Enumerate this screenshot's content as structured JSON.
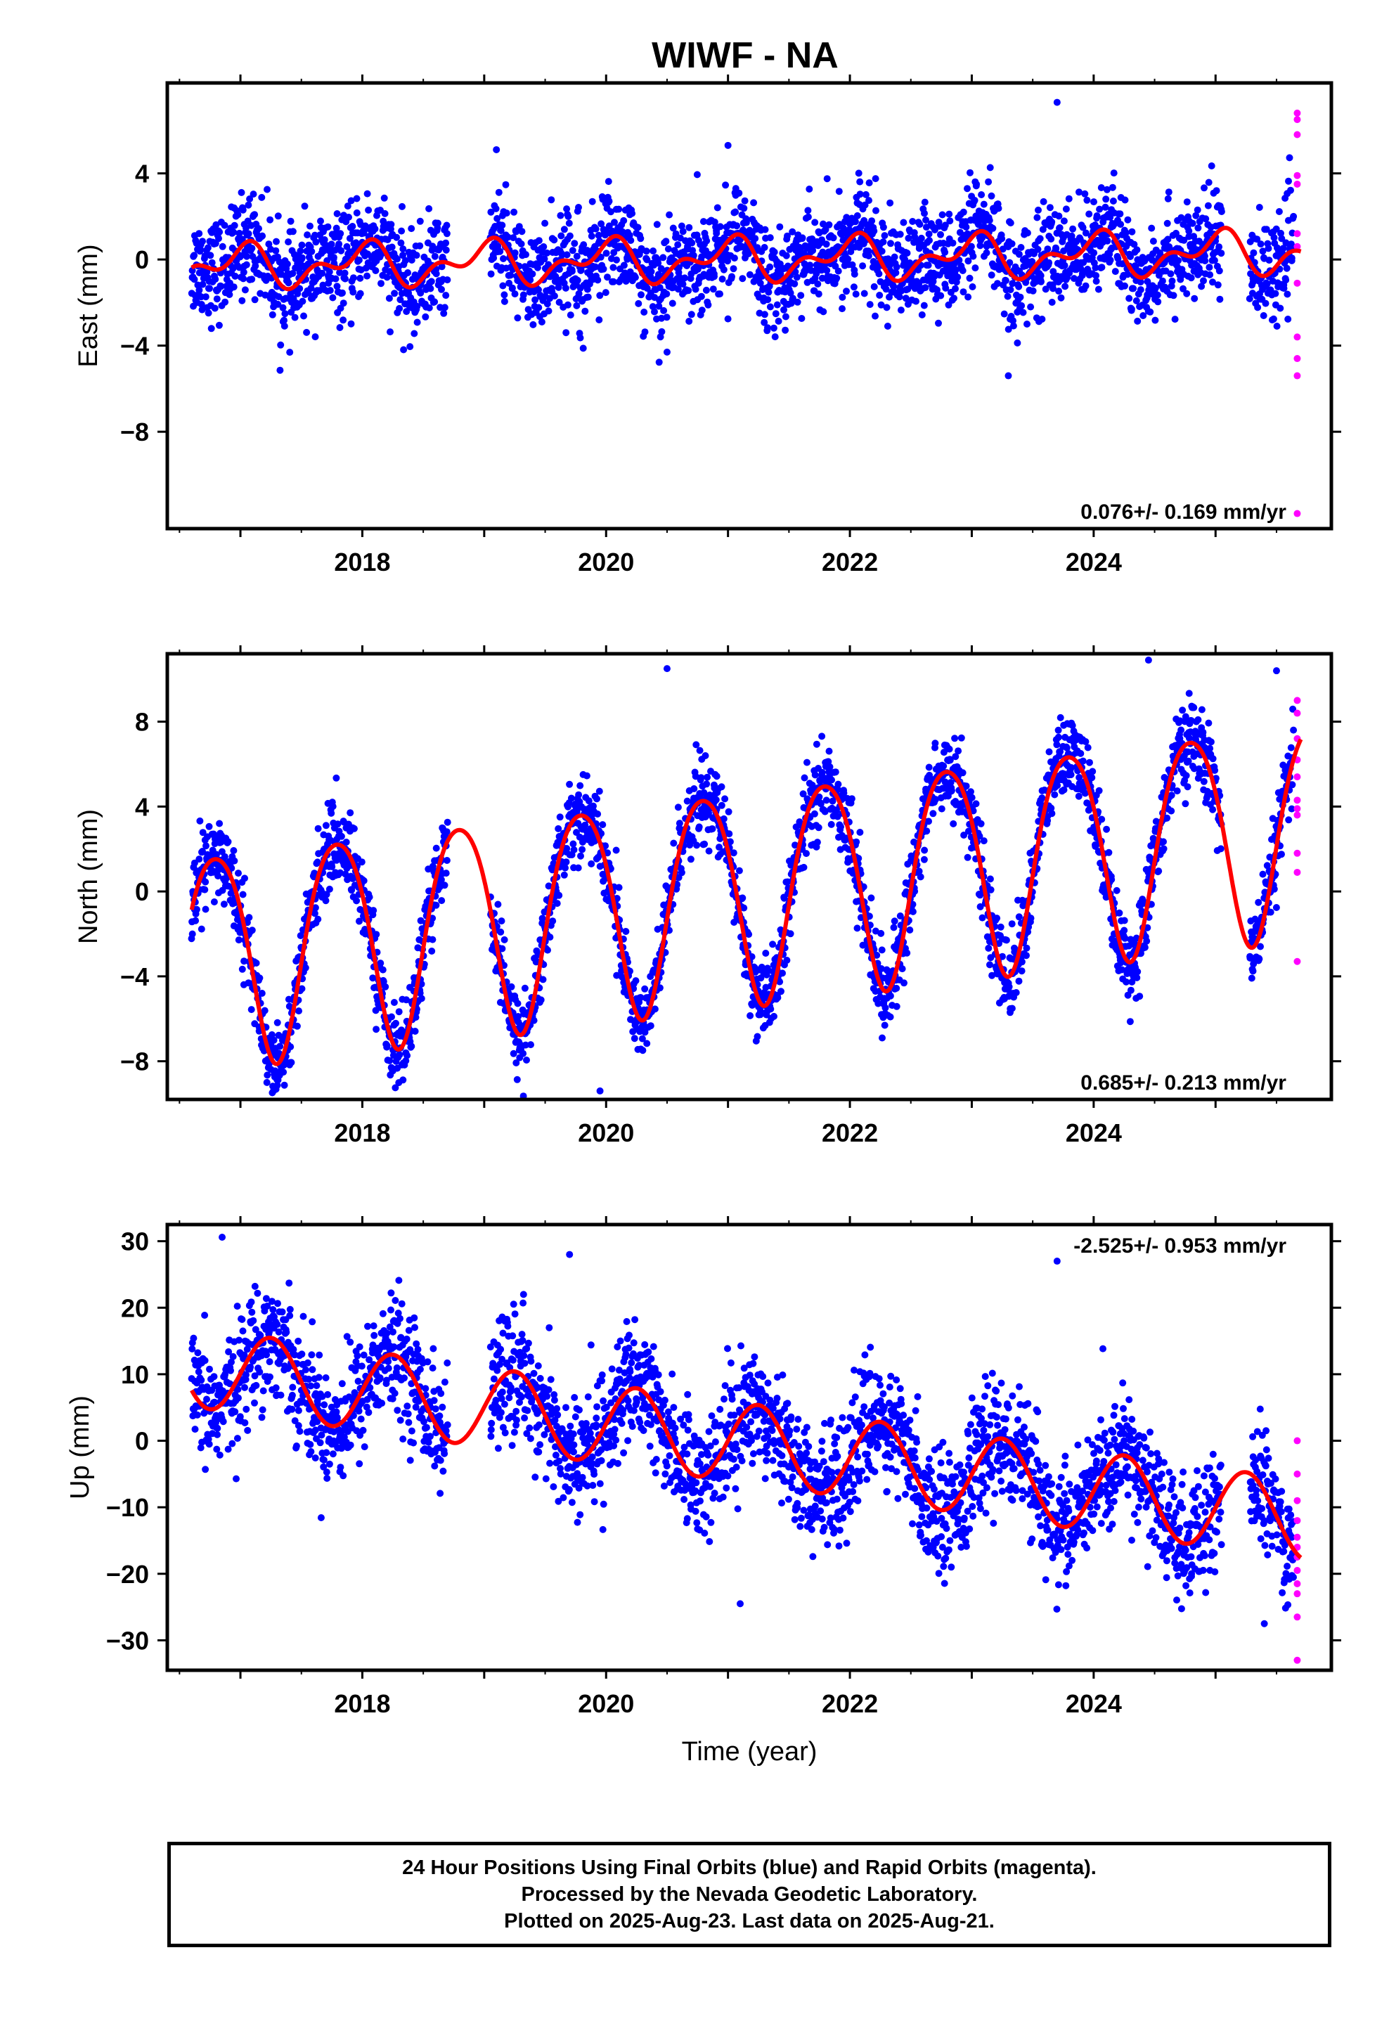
{
  "title": "WIWF - NA",
  "colors": {
    "final": "#0000ff",
    "rapid": "#ff00ff",
    "model": "#ff0000",
    "frame": "#000000"
  },
  "footer": {
    "line1": "24 Hour Positions Using Final Orbits (blue) and Rapid Orbits (magenta).",
    "line2": "Processed by the Nevada Geodetic Laboratory.",
    "line3": "Plotted on 2025-Aug-23. Last data on 2025-Aug-21."
  },
  "chart_data": [
    {
      "type": "scatter",
      "ylabel": "East (mm)",
      "xlabel": "",
      "xlim": [
        2016.4,
        2025.95
      ],
      "ylim": [
        -12.5,
        8.2
      ],
      "yticks": [
        -8,
        -4,
        0,
        4
      ],
      "xticks": [
        2018,
        2020,
        2022,
        2024
      ],
      "rate_label": "0.076+/- 0.169 mm/yr",
      "rate_position": "bottom-right",
      "data_start": 2016.6,
      "data_end": 2025.64,
      "gaps": [
        [
          2018.7,
          2019.05
        ],
        [
          2025.05,
          2025.28
        ]
      ],
      "model": {
        "offset": 0.0,
        "rate": 0.076,
        "annual_amp": 0.75,
        "annual_phase": 1.6,
        "semi_amp": 0.55,
        "semi_phase": 0.2
      },
      "scatter_sd": 1.15,
      "final_series": {
        "name": "Final Orbits",
        "count": 2900
      },
      "rapid_series": {
        "name": "Rapid Orbits",
        "values": [
          6.8,
          6.5,
          5.8,
          3.9,
          3.5,
          1.2,
          0.6,
          -1.1,
          -3.6,
          -4.6,
          -5.4,
          -11.8
        ]
      },
      "outliers": [
        [
          2023.7,
          7.3
        ],
        [
          2019.1,
          5.1
        ],
        [
          2021.0,
          5.3
        ],
        [
          2023.3,
          -5.4
        ],
        [
          2020.5,
          -4.3
        ]
      ]
    },
    {
      "type": "scatter",
      "ylabel": "North (mm)",
      "xlabel": "",
      "xlim": [
        2016.4,
        2025.95
      ],
      "ylim": [
        -9.8,
        11.2
      ],
      "yticks": [
        -8,
        -4,
        0,
        4,
        8
      ],
      "xticks": [
        2018,
        2020,
        2022,
        2024
      ],
      "rate_label": "0.685+/- 0.213 mm/yr",
      "rate_position": "bottom-right",
      "data_start": 2016.6,
      "data_end": 2025.64,
      "gaps": [
        [
          2018.7,
          2019.05
        ],
        [
          2025.05,
          2025.28
        ]
      ],
      "model": {
        "offset": 0.0,
        "rate": 0.685,
        "annual_amp": 5.0,
        "annual_phase": 2.85,
        "semi_amp": 0.6,
        "semi_phase": 0.9
      },
      "scatter_sd": 0.95,
      "final_series": {
        "name": "Final Orbits",
        "count": 2900
      },
      "rapid_series": {
        "name": "Rapid Orbits",
        "values": [
          9.0,
          8.4,
          7.2,
          6.2,
          5.4,
          4.3,
          3.9,
          3.6,
          1.8,
          0.9,
          -3.3
        ]
      },
      "outliers": [
        [
          2020.5,
          10.5
        ],
        [
          2024.45,
          10.9
        ],
        [
          2019.95,
          -9.4
        ],
        [
          2025.5,
          10.4
        ]
      ]
    },
    {
      "type": "scatter",
      "ylabel": "Up (mm)",
      "xlabel": "Time (year)",
      "xlim": [
        2016.4,
        2025.95
      ],
      "ylim": [
        -34.5,
        32.5
      ],
      "yticks": [
        -30,
        -20,
        -10,
        0,
        10,
        20,
        30
      ],
      "xticks": [
        2018,
        2020,
        2022,
        2024
      ],
      "rate_label": "-2.525+/- 0.953 mm/yr",
      "rate_position": "top-right",
      "data_start": 2016.6,
      "data_end": 2025.64,
      "gaps": [
        [
          2018.7,
          2019.05
        ],
        [
          2025.05,
          2025.28
        ]
      ],
      "model": {
        "offset": 0.0,
        "rate": -2.525,
        "annual_amp": 6.0,
        "annual_phase": 0.0,
        "semi_amp": 0.0,
        "semi_phase": 0.0
      },
      "scatter_sd": 4.4,
      "final_series": {
        "name": "Final Orbits",
        "count": 2900
      },
      "rapid_series": {
        "name": "Rapid Orbits",
        "values": [
          0.0,
          -5.0,
          -9.0,
          -12.0,
          -14.5,
          -16.0,
          -17.5,
          -19.5,
          -21.5,
          -23.0,
          -26.5,
          -33.0
        ]
      },
      "outliers": [
        [
          2016.85,
          30.6
        ],
        [
          2019.7,
          28.0
        ],
        [
          2023.7,
          27.0
        ],
        [
          2021.1,
          -24.5
        ],
        [
          2025.4,
          -27.5
        ]
      ]
    }
  ]
}
